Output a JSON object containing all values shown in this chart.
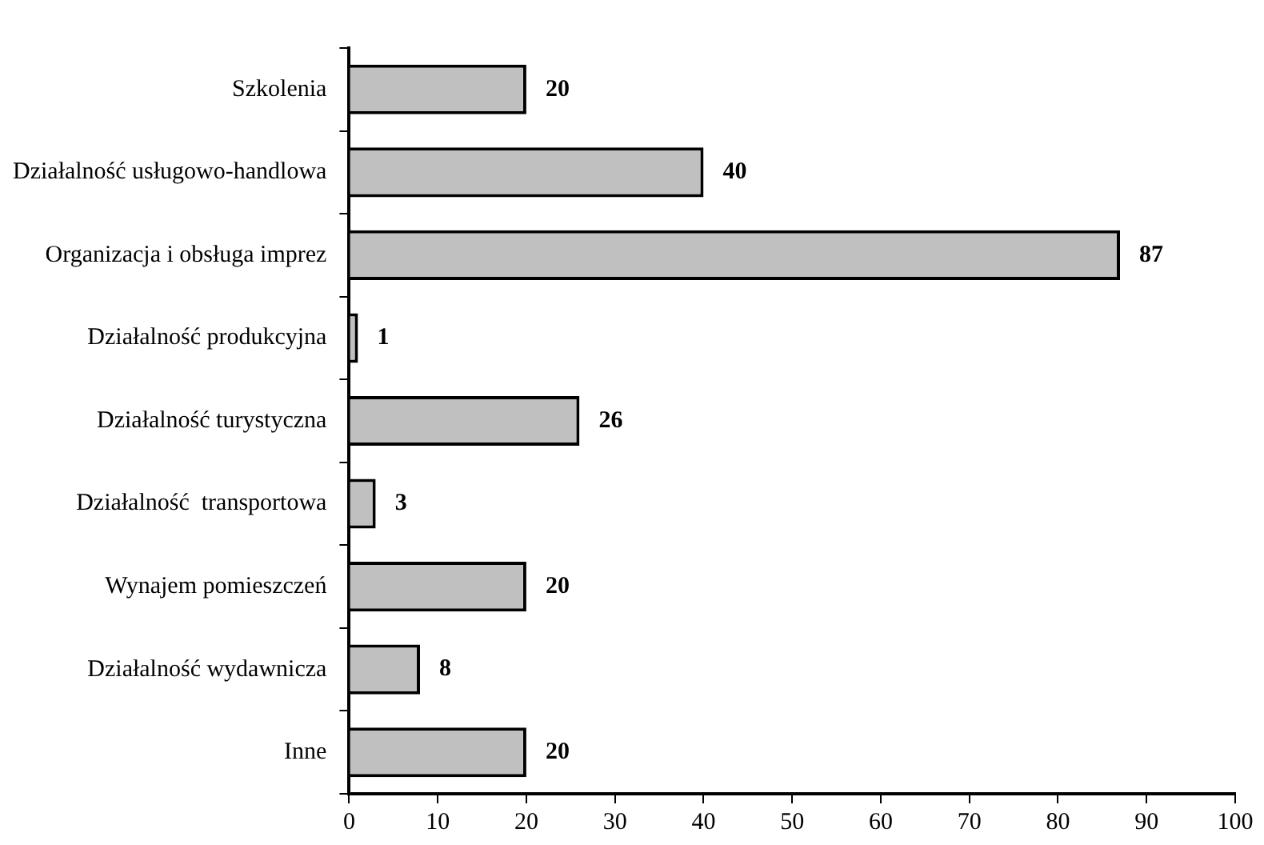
{
  "chart_data": {
    "type": "bar",
    "orientation": "horizontal",
    "categories": [
      "Szkolenia",
      "Działalność usługowo-handlowa",
      "Organizacja i obsługa imprez",
      "Działalność produkcyjna",
      "Działalność turystyczna",
      "Działalność  transportowa",
      "Wynajem pomieszczeń",
      "Działalność wydawnicza",
      "Inne"
    ],
    "values": [
      20,
      40,
      87,
      1,
      26,
      3,
      20,
      8,
      20
    ],
    "color": "#c0c0c0",
    "xlim": [
      0,
      100
    ],
    "xticks": [
      0,
      10,
      20,
      30,
      40,
      50,
      60,
      70,
      80,
      90,
      100
    ],
    "data_labels": true,
    "grid": false,
    "legend": false
  }
}
